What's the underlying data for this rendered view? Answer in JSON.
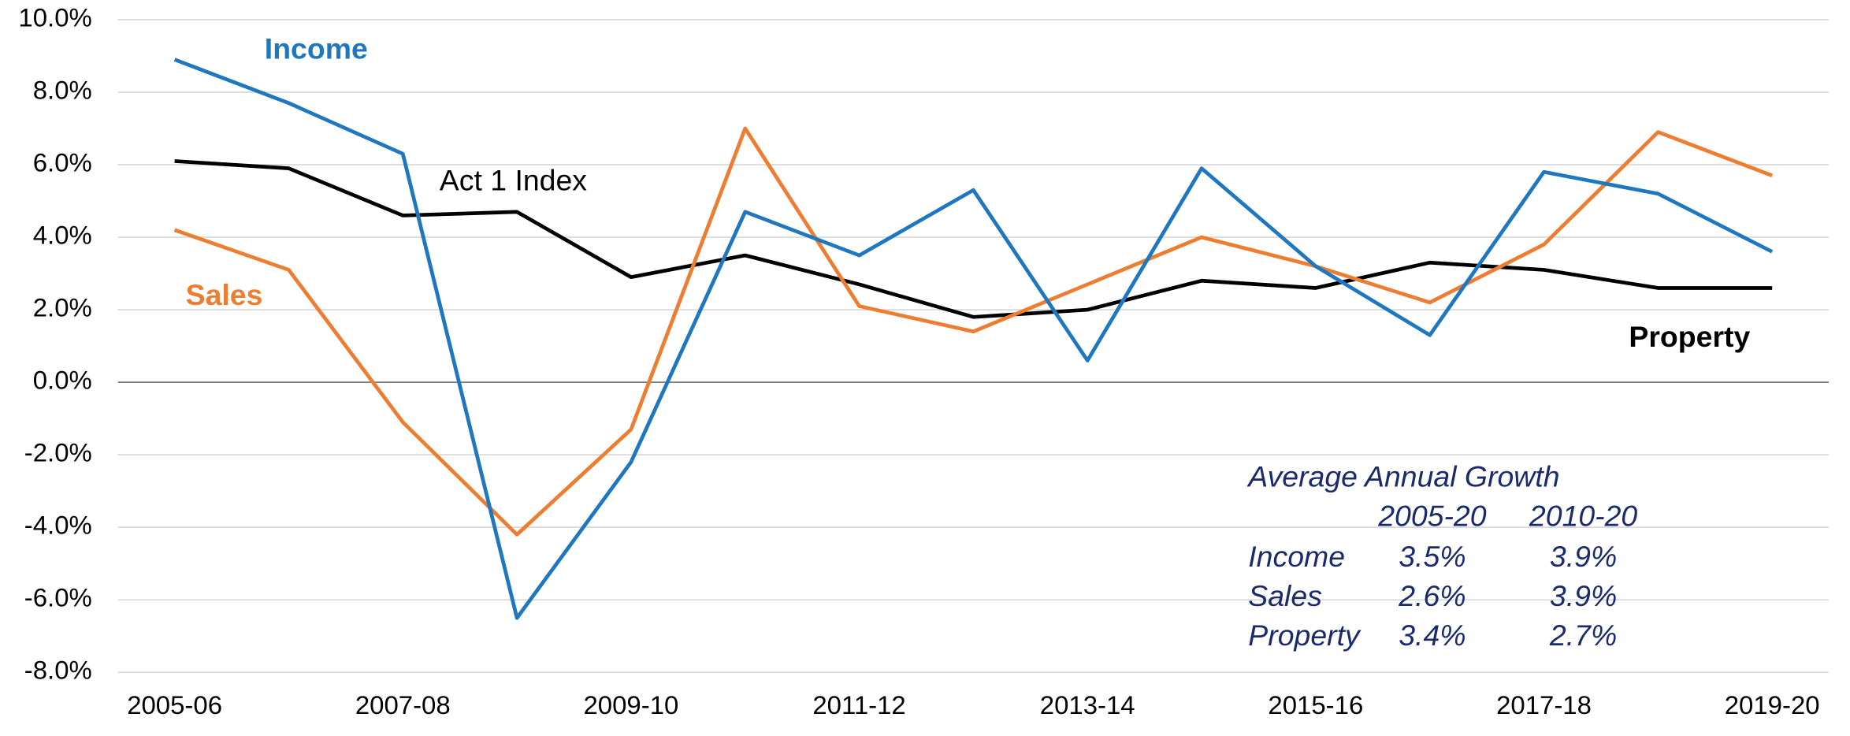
{
  "chart_data": {
    "type": "line",
    "categories": [
      "2005-06",
      null,
      "2007-08",
      null,
      "2009-10",
      null,
      "2011-12",
      null,
      "2013-14",
      null,
      "2015-16",
      null,
      "2017-18",
      null,
      "2019-20"
    ],
    "series": [
      {
        "name": "Income",
        "color": "#1f77c0",
        "values": [
          8.9,
          7.7,
          6.3,
          -6.5,
          -2.2,
          4.7,
          3.5,
          5.3,
          0.6,
          5.9,
          3.2,
          1.3,
          5.8,
          5.2,
          3.6
        ]
      },
      {
        "name": "Sales",
        "color": "#ed7d31",
        "values": [
          4.2,
          3.1,
          -1.1,
          -4.2,
          -1.3,
          7.0,
          2.1,
          1.4,
          2.7,
          4.0,
          3.2,
          2.2,
          3.8,
          6.9,
          5.7
        ]
      },
      {
        "name": "Property",
        "color": "#000000",
        "values": [
          6.1,
          5.9,
          4.6,
          4.7,
          2.9,
          3.5,
          2.7,
          1.8,
          2.0,
          2.8,
          2.6,
          3.3,
          3.1,
          2.6,
          2.6
        ]
      }
    ],
    "ylim": [
      -8,
      10
    ],
    "yticks": [
      {
        "value": -8,
        "label": "-8.0%"
      },
      {
        "value": -6,
        "label": "-6.0%"
      },
      {
        "value": -4,
        "label": "-4.0%"
      },
      {
        "value": -2,
        "label": "-2.0%"
      },
      {
        "value": 0,
        "label": "0.0%"
      },
      {
        "value": 2,
        "label": "2.0%"
      },
      {
        "value": 4,
        "label": "4.0%"
      },
      {
        "value": 6,
        "label": "6.0%"
      },
      {
        "value": 8,
        "label": "8.0%"
      },
      {
        "value": 10,
        "label": "10.0%"
      }
    ],
    "grid": true,
    "annotations": {
      "index_label": "Act 1 Index",
      "growth_table": {
        "title": "Average Annual Growth",
        "columns": [
          "2005-20",
          "2010-20"
        ],
        "rows": [
          [
            "Income",
            "3.5%",
            "3.9%"
          ],
          [
            "Sales",
            "2.6%",
            "3.9%"
          ],
          [
            "Property",
            "3.4%",
            "2.7%"
          ]
        ]
      }
    }
  }
}
